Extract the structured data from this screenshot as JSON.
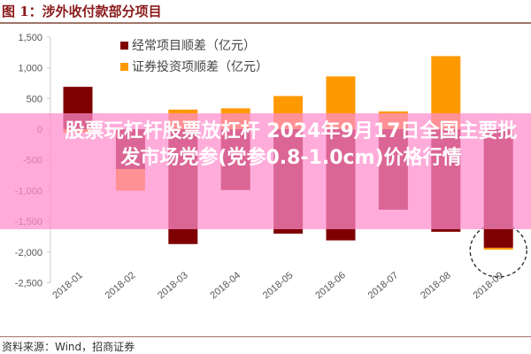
{
  "title": "图 1：涉外收付款部分项目",
  "source": "资料来源：Wind，招商证券",
  "banner": {
    "line1": "股票玩杠杆股票放杠杆 2024年9月17日全国主要批",
    "line2": "发市场党参(党参0.8-1.0cm)价格行情"
  },
  "chart_data": {
    "type": "bar",
    "stacked": true,
    "title": "",
    "xlabel": "",
    "ylabel": "",
    "ylim": [
      -2500,
      1500
    ],
    "yticks": [
      1500,
      1000,
      500,
      0,
      -500,
      -1000,
      -1500,
      -2000,
      -2500
    ],
    "ytick_labels": [
      "1,500",
      "1,000",
      "500",
      "0",
      "-500",
      "-1,000",
      "-1,500",
      "-2,000",
      "-2,500"
    ],
    "categories": [
      "2018-01",
      "2018-02",
      "2018-03",
      "2018-04",
      "2018-05",
      "2018-06",
      "2018-07",
      "2018-08",
      "2018-09"
    ],
    "series": [
      {
        "name": "经常项目顺差（亿元）",
        "color": "#7f0000",
        "values": [
          690,
          -650,
          -1870,
          -990,
          -1700,
          -1810,
          -1310,
          -1670,
          -1930
        ]
      },
      {
        "name": "证券投资项顺差（亿元）",
        "color": "#ff9900",
        "values": [
          -60,
          -350,
          320,
          340,
          540,
          860,
          290,
          1190,
          -30
        ]
      }
    ],
    "legend_position": "top-left",
    "grid": false,
    "annotation": "dashed circle around 2018-09"
  }
}
